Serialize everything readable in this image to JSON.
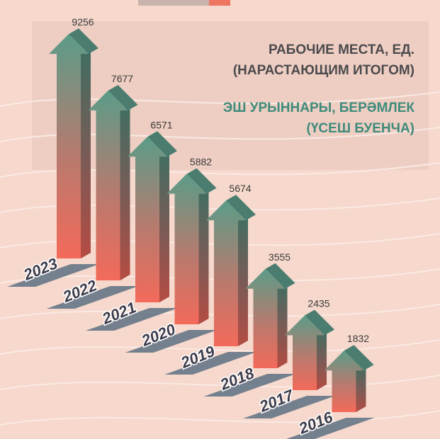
{
  "chart_data": {
    "type": "bar",
    "title": [
      "РАБОЧИЕ МЕСТА, ЕД.",
      "(НАРАСТАЮЩИМ ИТОГОМ)"
    ],
    "subtitle": [
      "ЭШ УРЫННАРЫ, БЕРӘМЛЕК",
      "(ҮСЕШ БУЕНЧА)"
    ],
    "categories": [
      "2023",
      "2022",
      "2021",
      "2020",
      "2019",
      "2018",
      "2017",
      "2016"
    ],
    "values": [
      9256,
      7677,
      6571,
      5882,
      5674,
      3555,
      2435,
      1832
    ],
    "color": "#5b9c88"
  }
}
